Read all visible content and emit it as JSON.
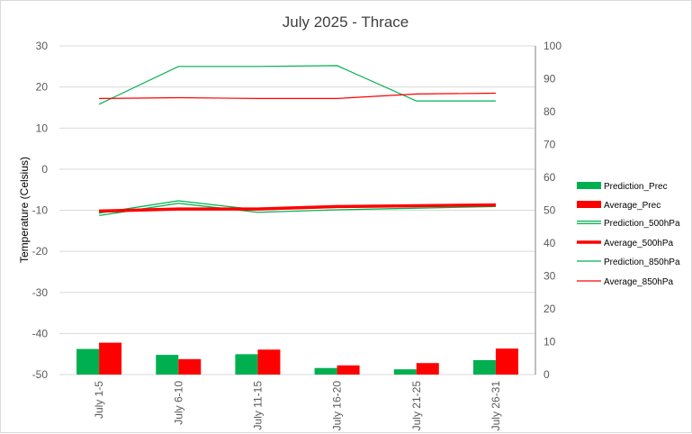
{
  "chart_data": {
    "type": "bar",
    "title": "July 2025 - Thrace",
    "ylabel": "Temperature (Celsius)",
    "ylabel_right": "",
    "xlabel": "",
    "categories": [
      "July 1-5",
      "July 6-10",
      "July 11-15",
      "July 16-20",
      "July 21-25",
      "July 26-31"
    ],
    "ylim": [
      -50,
      30
    ],
    "y_ticks": [
      30,
      20,
      10,
      0,
      -10,
      -20,
      -30,
      -40,
      -50
    ],
    "ylim_right": [
      0,
      100
    ],
    "y_ticks_right": [
      100,
      90,
      80,
      70,
      60,
      50,
      40,
      30,
      20,
      10,
      0
    ],
    "grid": "horizontal",
    "legend_position": "right",
    "series": [
      {
        "name": "Prediction_Prec",
        "kind": "bar",
        "axis": "right",
        "color": "#00b050",
        "values": [
          7.8,
          6.0,
          6.2,
          2.0,
          1.6,
          4.4
        ]
      },
      {
        "name": "Average_Prec",
        "kind": "bar",
        "axis": "right",
        "color": "#ff0000",
        "values": [
          9.7,
          4.7,
          7.6,
          2.8,
          3.5,
          7.9
        ]
      },
      {
        "name": "Prediction_500hPa",
        "kind": "double-line",
        "axis": "left",
        "color": "#00b050",
        "values": [
          -11.0,
          -8.0,
          -10.2,
          -9.6,
          -9.2,
          -8.8
        ]
      },
      {
        "name": "Average_500hPa",
        "kind": "thick-line",
        "axis": "left",
        "color": "#ff0000",
        "values": [
          -10.2,
          -9.7,
          -9.7,
          -9.1,
          -8.9,
          -8.7
        ]
      },
      {
        "name": "Prediction_850hPa",
        "kind": "line",
        "axis": "left",
        "color": "#00b050",
        "values": [
          15.8,
          25.0,
          25.0,
          25.2,
          16.6,
          16.6
        ]
      },
      {
        "name": "Average_850hPa",
        "kind": "line",
        "axis": "left",
        "color": "#ff0000",
        "values": [
          17.2,
          17.4,
          17.2,
          17.2,
          18.3,
          18.5
        ]
      }
    ]
  }
}
